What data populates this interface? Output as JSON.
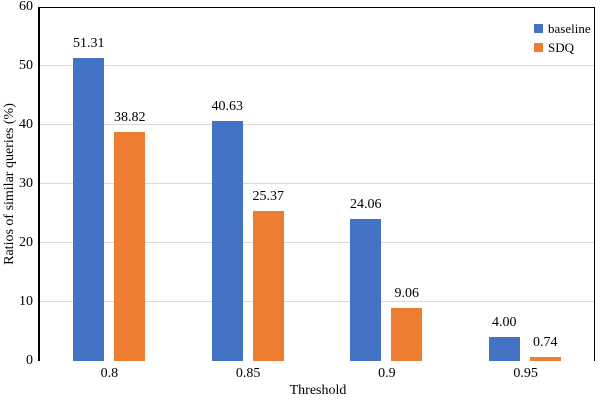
{
  "chart_data": {
    "type": "bar",
    "title": "",
    "categories": [
      "0.8",
      "0.85",
      "0.9",
      "0.95"
    ],
    "series": [
      {
        "name": "baseline",
        "color": "#4472C4",
        "values": [
          51.31,
          40.63,
          24.06,
          4.0
        ],
        "labels": [
          "51.31",
          "40.63",
          "24.06",
          "4.00"
        ]
      },
      {
        "name": "SDQ",
        "color": "#ED7D31",
        "values": [
          38.82,
          25.37,
          9.06,
          0.74
        ],
        "labels": [
          "38.82",
          "25.37",
          "9.06",
          "0.74"
        ]
      }
    ],
    "xlabel": "Threshold",
    "ylabel": "Ratios of similar queries (%)",
    "ylim": [
      0,
      60
    ],
    "yticks": [
      0,
      10,
      20,
      30,
      40,
      50,
      60
    ],
    "ytick_labels": [
      "0",
      "10",
      "20",
      "30",
      "40",
      "50",
      "60"
    ],
    "grid": true,
    "gridline_color": "#D9D9D9",
    "axis_color": "#000000",
    "background_color": "#FFFFFF",
    "legend_position": "top-right-inside"
  }
}
